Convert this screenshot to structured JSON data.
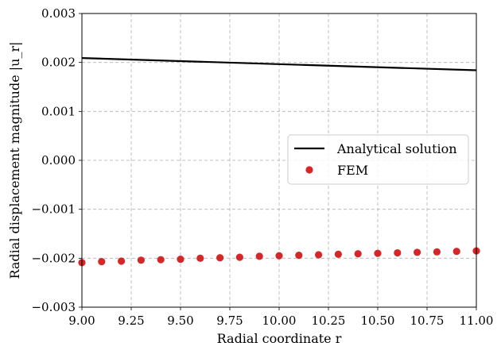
{
  "chart_data": {
    "type": "line",
    "xlabel": "Radial coordinate r",
    "ylabel": "Radial displacement magnitude |u_r|",
    "xlim": [
      9.0,
      11.0
    ],
    "ylim": [
      -0.003,
      0.003
    ],
    "x_ticks": [
      "9.00",
      "9.25",
      "9.50",
      "9.75",
      "10.00",
      "10.25",
      "10.50",
      "10.75",
      "11.00"
    ],
    "y_ticks": [
      "0.003",
      "0.002",
      "0.001",
      "0.000",
      "−0.001",
      "−0.002",
      "−0.003"
    ],
    "grid": true,
    "legend_position": "center-right",
    "series": [
      {
        "name": "Analytical solution",
        "style": "line",
        "color": "#000000",
        "x": [
          9.0,
          11.0
        ],
        "y": [
          0.00209,
          0.00184
        ]
      },
      {
        "name": "FEM",
        "style": "markers",
        "color": "#d62728",
        "x": [
          9.0,
          9.1,
          9.2,
          9.3,
          9.4,
          9.5,
          9.6,
          9.7,
          9.8,
          9.9,
          10.0,
          10.1,
          10.2,
          10.3,
          10.4,
          10.5,
          10.6,
          10.7,
          10.8,
          10.9,
          11.0
        ],
        "y": [
          -0.00209,
          -0.00207,
          -0.00206,
          -0.00204,
          -0.00203,
          -0.00202,
          -0.002,
          -0.00199,
          -0.00198,
          -0.00196,
          -0.00195,
          -0.00194,
          -0.00193,
          -0.00192,
          -0.00191,
          -0.0019,
          -0.00189,
          -0.00188,
          -0.00187,
          -0.00186,
          -0.00185
        ]
      }
    ]
  }
}
